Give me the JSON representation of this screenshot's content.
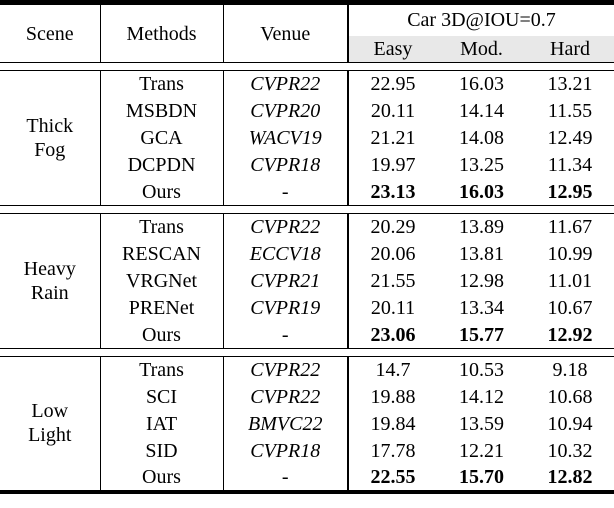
{
  "table": {
    "header": {
      "scene": "Scene",
      "methods": "Methods",
      "venue": "Venue",
      "metric_group": "Car 3D@IOU=0.7",
      "sub_columns": [
        "Easy",
        "Mod.",
        "Hard"
      ]
    },
    "colors": {
      "header_band": "#e8e8e8",
      "rule": "#000000"
    },
    "sections": [
      {
        "scene": "Thick\nFog",
        "rows": [
          {
            "method": "Trans",
            "venue": "CVPR22",
            "easy": "22.95",
            "mod": "16.03",
            "hard": "13.21"
          },
          {
            "method": "MSBDN",
            "venue": "CVPR20",
            "easy": "20.11",
            "mod": "14.14",
            "hard": "11.55"
          },
          {
            "method": "GCA",
            "venue": "WACV19",
            "easy": "21.21",
            "mod": "14.08",
            "hard": "12.49"
          },
          {
            "method": "DCPDN",
            "venue": "CVPR18",
            "easy": "19.97",
            "mod": "13.25",
            "hard": "11.34"
          },
          {
            "method": "Ours",
            "venue": "-",
            "easy": "23.13",
            "mod": "16.03",
            "hard": "12.95"
          }
        ]
      },
      {
        "scene": "Heavy\nRain",
        "rows": [
          {
            "method": "Trans",
            "venue": "CVPR22",
            "easy": "20.29",
            "mod": "13.89",
            "hard": "11.67"
          },
          {
            "method": "RESCAN",
            "venue": "ECCV18",
            "easy": "20.06",
            "mod": "13.81",
            "hard": "10.99"
          },
          {
            "method": "VRGNet",
            "venue": "CVPR21",
            "easy": "21.55",
            "mod": "12.98",
            "hard": "11.01"
          },
          {
            "method": "PRENet",
            "venue": "CVPR19",
            "easy": "20.11",
            "mod": "13.34",
            "hard": "10.67"
          },
          {
            "method": "Ours",
            "venue": "-",
            "easy": "23.06",
            "mod": "15.77",
            "hard": "12.92"
          }
        ]
      },
      {
        "scene": "Low\nLight",
        "rows": [
          {
            "method": "Trans",
            "venue": "CVPR22",
            "easy": "14.7",
            "mod": "10.53",
            "hard": "9.18"
          },
          {
            "method": "SCI",
            "venue": "CVPR22",
            "easy": "19.88",
            "mod": "14.12",
            "hard": "10.68"
          },
          {
            "method": "IAT",
            "venue": "BMVC22",
            "easy": "19.84",
            "mod": "13.59",
            "hard": "10.94"
          },
          {
            "method": "SID",
            "venue": "CVPR18",
            "easy": "17.78",
            "mod": "12.21",
            "hard": "10.32"
          },
          {
            "method": "Ours",
            "venue": "-",
            "easy": "22.55",
            "mod": "15.70",
            "hard": "12.82"
          }
        ]
      }
    ]
  }
}
